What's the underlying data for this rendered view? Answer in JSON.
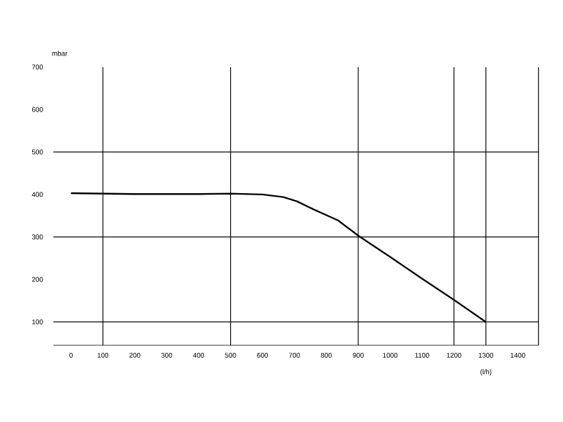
{
  "chart_data": {
    "type": "line",
    "xlabel": "(l/h)",
    "ylabel": "mbar",
    "x": [
      0,
      200,
      400,
      500,
      600,
      665,
      708,
      760,
      837,
      900,
      1000,
      1100,
      1200,
      1300
    ],
    "values": [
      403,
      401,
      401,
      402,
      400,
      394,
      384,
      365,
      339,
      303,
      253,
      202,
      152,
      100
    ],
    "color": "#000000",
    "marker": "none",
    "line_style": "solid",
    "xlim": [
      -55,
      1465
    ],
    "ylim": [
      45,
      700
    ],
    "xticks": [
      0,
      100,
      200,
      300,
      400,
      500,
      600,
      700,
      800,
      900,
      1000,
      1100,
      1200,
      1300,
      1400
    ],
    "yticks": [
      100,
      200,
      300,
      400,
      500,
      600,
      700
    ],
    "ref_lines": [
      {
        "axis": "x",
        "value": 100
      },
      {
        "axis": "x",
        "value": 500
      },
      {
        "axis": "x",
        "value": 900
      },
      {
        "axis": "x",
        "value": 1200
      },
      {
        "axis": "x",
        "value": 1300
      },
      {
        "axis": "y",
        "value": 100
      },
      {
        "axis": "y",
        "value": 300
      },
      {
        "axis": "y",
        "value": 500
      }
    ]
  }
}
